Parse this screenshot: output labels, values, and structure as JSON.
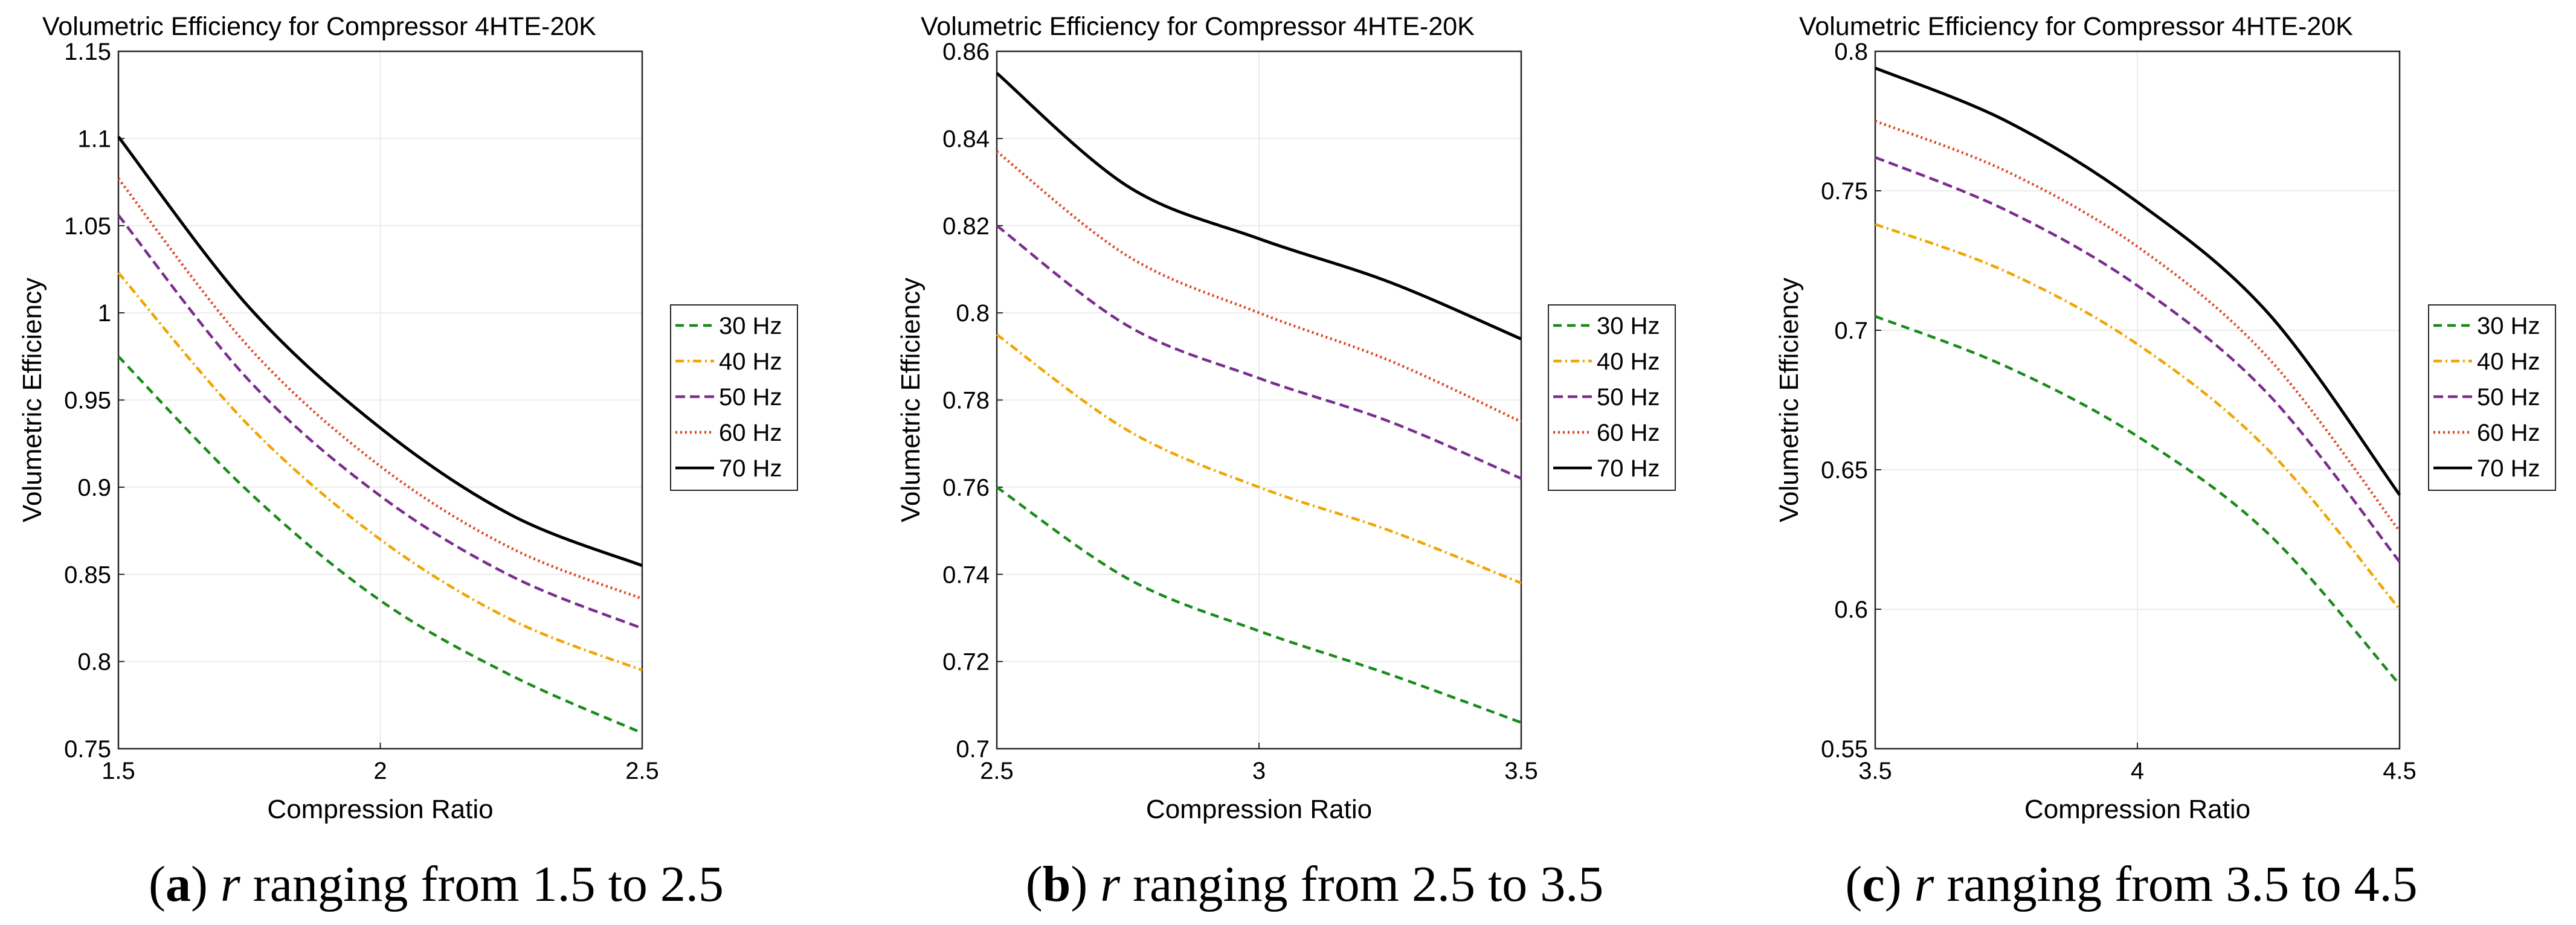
{
  "chart_data": [
    {
      "type": "line",
      "title": "Volumetric Efficiency for Compressor 4HTE-20K",
      "xlabel": "Compression Ratio",
      "ylabel": "Volumetric Efficiency",
      "xlim": [
        1.5,
        2.5
      ],
      "ylim": [
        0.75,
        1.15
      ],
      "xticks": [
        1.5,
        2,
        2.5
      ],
      "xtick_labels": [
        "1.5",
        "2",
        "2.5"
      ],
      "yticks": [
        0.75,
        0.8,
        0.85,
        0.9,
        0.95,
        1,
        1.05,
        1.1,
        1.15
      ],
      "ytick_labels": [
        "0.75",
        "0.8",
        "0.85",
        "0.9",
        "0.95",
        "1",
        "1.05",
        "1.1",
        "1.15"
      ],
      "grid": true,
      "legend_position": "outside-right",
      "x": [
        1.5,
        1.75,
        2.0,
        2.25,
        2.5
      ],
      "series": [
        {
          "name": "30 Hz",
          "values": [
            0.975,
            0.897,
            0.835,
            0.792,
            0.759
          ]
        },
        {
          "name": "40 Hz",
          "values": [
            1.023,
            0.935,
            0.87,
            0.824,
            0.795
          ]
        },
        {
          "name": "50 Hz",
          "values": [
            1.056,
            0.961,
            0.895,
            0.849,
            0.819
          ]
        },
        {
          "name": "60 Hz",
          "values": [
            1.077,
            0.98,
            0.912,
            0.865,
            0.836
          ]
        },
        {
          "name": "70 Hz",
          "values": [
            1.101,
            1.003,
            0.934,
            0.884,
            0.855
          ]
        }
      ]
    },
    {
      "type": "line",
      "title": "Volumetric Efficiency for Compressor 4HTE-20K",
      "xlabel": "Compression Ratio",
      "ylabel": "Volumetric Efficiency",
      "xlim": [
        2.5,
        3.5
      ],
      "ylim": [
        0.7,
        0.86
      ],
      "xticks": [
        2.5,
        3,
        3.5
      ],
      "xtick_labels": [
        "2.5",
        "3",
        "3.5"
      ],
      "yticks": [
        0.7,
        0.72,
        0.74,
        0.76,
        0.78,
        0.8,
        0.82,
        0.84,
        0.86
      ],
      "ytick_labels": [
        "0.7",
        "0.72",
        "0.74",
        "0.76",
        "0.78",
        "0.8",
        "0.82",
        "0.84",
        "0.86"
      ],
      "grid": true,
      "legend_position": "outside-right",
      "x": [
        2.5,
        2.75,
        3.0,
        3.25,
        3.5
      ],
      "series": [
        {
          "name": "30 Hz",
          "values": [
            0.76,
            0.739,
            0.727,
            0.717,
            0.706
          ]
        },
        {
          "name": "40 Hz",
          "values": [
            0.795,
            0.773,
            0.76,
            0.75,
            0.738
          ]
        },
        {
          "name": "50 Hz",
          "values": [
            0.82,
            0.797,
            0.785,
            0.775,
            0.762
          ]
        },
        {
          "name": "60 Hz",
          "values": [
            0.837,
            0.813,
            0.8,
            0.789,
            0.775
          ]
        },
        {
          "name": "70 Hz",
          "values": [
            0.855,
            0.829,
            0.817,
            0.807,
            0.794
          ]
        }
      ]
    },
    {
      "type": "line",
      "title": "Volumetric Efficiency for Compressor 4HTE-20K",
      "xlabel": "Compression Ratio",
      "ylabel": "Volumetric Efficiency",
      "xlim": [
        3.5,
        4.5
      ],
      "ylim": [
        0.55,
        0.8
      ],
      "xticks": [
        3.5,
        4,
        4.5
      ],
      "xtick_labels": [
        "3.5",
        "4",
        "4.5"
      ],
      "yticks": [
        0.55,
        0.6,
        0.65,
        0.7,
        0.75,
        0.8
      ],
      "ytick_labels": [
        "0.55",
        "0.6",
        "0.65",
        "0.7",
        "0.75",
        "0.8"
      ],
      "grid": true,
      "legend_position": "outside-right",
      "x": [
        3.5,
        3.75,
        4.0,
        4.25,
        4.5
      ],
      "series": [
        {
          "name": "30 Hz",
          "values": [
            0.705,
            0.687,
            0.662,
            0.627,
            0.573
          ]
        },
        {
          "name": "40 Hz",
          "values": [
            0.738,
            0.721,
            0.695,
            0.657,
            0.6
          ]
        },
        {
          "name": "50 Hz",
          "values": [
            0.762,
            0.743,
            0.716,
            0.677,
            0.617
          ]
        },
        {
          "name": "60 Hz",
          "values": [
            0.775,
            0.757,
            0.73,
            0.69,
            0.628
          ]
        },
        {
          "name": "70 Hz",
          "values": [
            0.794,
            0.775,
            0.746,
            0.706,
            0.641
          ]
        }
      ]
    }
  ],
  "series_styles": [
    {
      "color": "#1a8a1a",
      "dash": "14,9"
    },
    {
      "color": "#f0a500",
      "dash": "14,6,3,6"
    },
    {
      "color": "#7b2d8e",
      "dash": "16,8"
    },
    {
      "color": "#e0401a",
      "dash": "3,5"
    },
    {
      "color": "#000000",
      "dash": ""
    }
  ],
  "captions": [
    {
      "letter": "a",
      "symbol": "r",
      "text": " ranging from 1.5 to 2.5"
    },
    {
      "letter": "b",
      "symbol": "r",
      "text": " ranging from 2.5 to 3.5"
    },
    {
      "letter": "c",
      "symbol": "r",
      "text": " ranging from 3.5 to 4.5"
    }
  ]
}
